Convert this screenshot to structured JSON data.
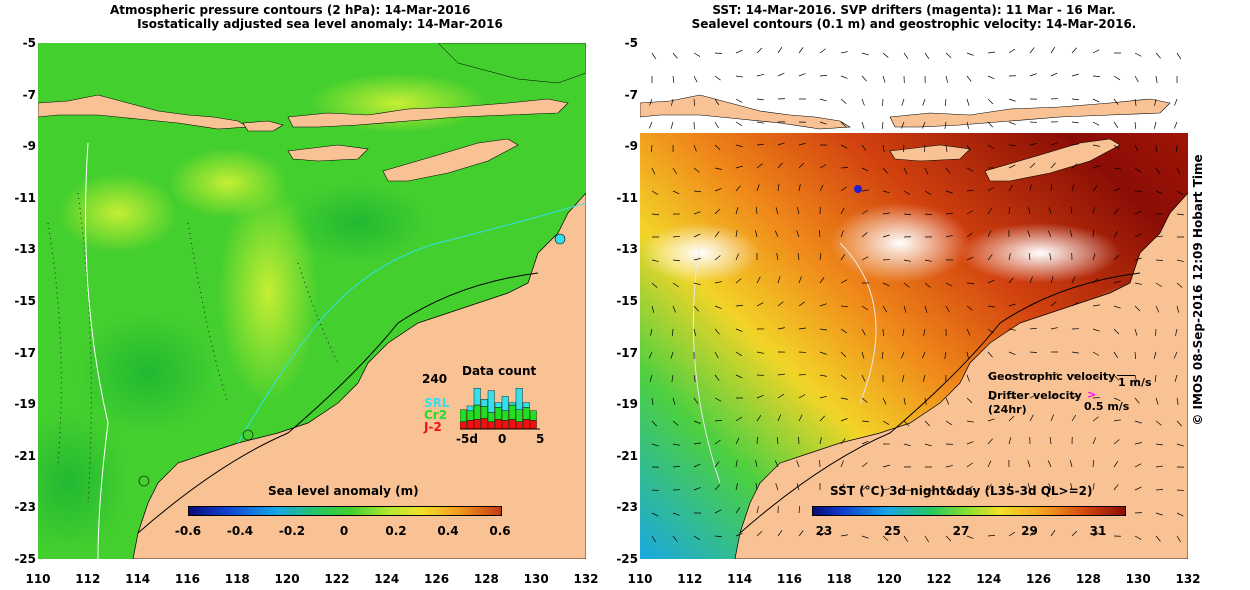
{
  "left": {
    "title1": "Atmospheric pressure contours (2 hPa): 14-Mar-2016",
    "title2": "Isostatically adjusted sea level anomaly: 14-Mar-2016",
    "colorbar_title": "Sea level anomaly (m)",
    "colorbar_ticks": [
      "-0.6",
      "-0.4",
      "-0.2",
      "0",
      "0.2",
      "0.4",
      "0.6"
    ],
    "data_count": {
      "title": "Data count",
      "max": "240",
      "legend": [
        {
          "name": "SRL",
          "color": "#33e0ea"
        },
        {
          "name": "Cr2",
          "color": "#22dd22"
        },
        {
          "name": "J-2",
          "color": "#ee1111"
        }
      ],
      "xticks": [
        "-5d",
        "0",
        "5"
      ],
      "bars": [
        {
          "J2": 0.15,
          "Cr2": 0.25,
          "SRL": 0.0
        },
        {
          "J2": 0.18,
          "Cr2": 0.2,
          "SRL": 0.1
        },
        {
          "J2": 0.2,
          "Cr2": 0.3,
          "SRL": 0.35
        },
        {
          "J2": 0.22,
          "Cr2": 0.25,
          "SRL": 0.15
        },
        {
          "J2": 0.15,
          "Cr2": 0.2,
          "SRL": 0.45
        },
        {
          "J2": 0.2,
          "Cr2": 0.25,
          "SRL": 0.1
        },
        {
          "J2": 0.18,
          "Cr2": 0.2,
          "SRL": 0.3
        },
        {
          "J2": 0.2,
          "Cr2": 0.3,
          "SRL": 0.05
        },
        {
          "J2": 0.15,
          "Cr2": 0.25,
          "SRL": 0.45
        },
        {
          "J2": 0.2,
          "Cr2": 0.25,
          "SRL": 0.1
        },
        {
          "J2": 0.18,
          "Cr2": 0.2,
          "SRL": 0.0
        }
      ]
    }
  },
  "right": {
    "title1": "SST: 14-Mar-2016. SVP drifters (magenta): 11 Mar - 16 Mar.",
    "title2": "Sealevel contours (0.1 m) and geostrophic velocity: 14-Mar-2016.",
    "colorbar_title": "SST (°C) 3d night&day (L3S-3d QL>=2)",
    "colorbar_ticks": [
      "23",
      "25",
      "27",
      "29",
      "31"
    ],
    "geo_label": "Geostrophic velocity",
    "geo_scale": "1 m/s",
    "drifter_label1": "Drifter velocity",
    "drifter_label2": "(24hr)",
    "drifter_scale": "0.5 m/s",
    "drifter_color": "#ff00ff"
  },
  "credit": "© IMOS 08-Sep-2016 12:09 Hobart Time",
  "lat_ticks": [
    "-5",
    "-7",
    "-9",
    "-11",
    "-13",
    "-15",
    "-17",
    "-19",
    "-21",
    "-23",
    "-25"
  ],
  "lon_ticks": [
    "110",
    "112",
    "114",
    "116",
    "118",
    "120",
    "122",
    "124",
    "126",
    "128",
    "130",
    "132"
  ],
  "colors": {
    "land": "#f9c295",
    "ocean_green": "#3ccc2c",
    "ocean_hi": "#9be52e",
    "sst_dark": "#8a0d05",
    "sst_mid": "#d2420f",
    "sst_orange": "#f08a1a"
  }
}
